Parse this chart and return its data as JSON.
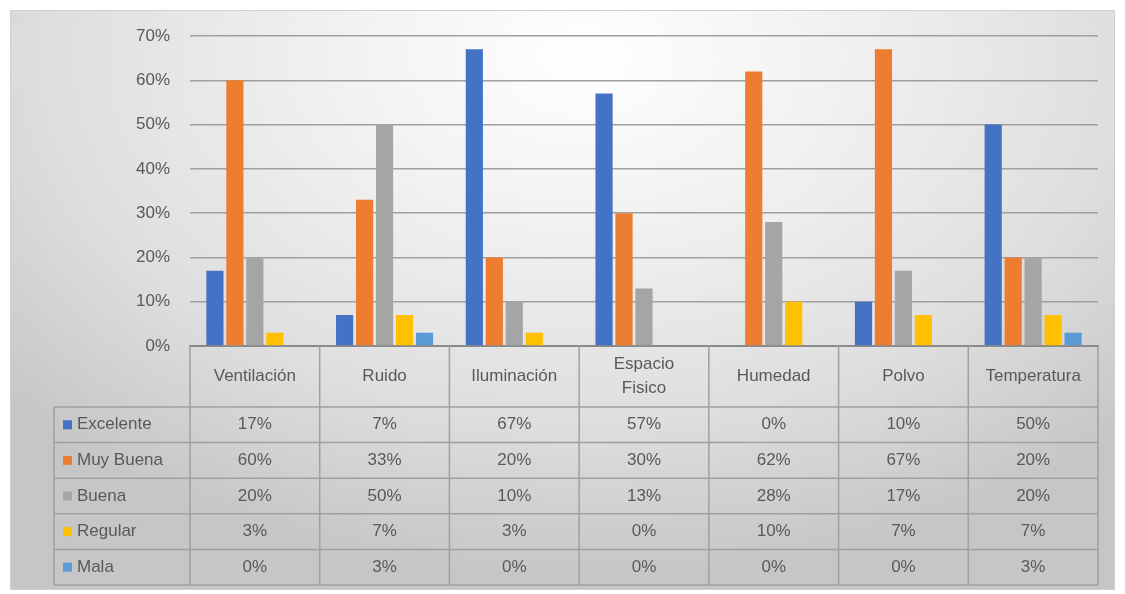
{
  "chart_data": {
    "type": "bar",
    "categories": [
      "Ventilación",
      "Ruido",
      "Iluminación",
      "Espacio\nFisico",
      "Humedad",
      "Polvo",
      "Temperatura"
    ],
    "series": [
      {
        "name": "Excelente",
        "color": "#4472c4",
        "values": [
          17,
          7,
          67,
          57,
          0,
          10,
          50
        ],
        "value_labels": [
          "17%",
          "7%",
          "67%",
          "57%",
          "0%",
          "10%",
          "50%"
        ]
      },
      {
        "name": "Muy Buena",
        "color": "#ed7d31",
        "values": [
          60,
          33,
          20,
          30,
          62,
          67,
          20
        ],
        "value_labels": [
          "60%",
          "33%",
          "20%",
          "30%",
          "62%",
          "67%",
          "20%"
        ]
      },
      {
        "name": "Buena",
        "color": "#a5a5a5",
        "values": [
          20,
          50,
          10,
          13,
          28,
          17,
          20
        ],
        "value_labels": [
          "20%",
          "50%",
          "10%",
          "13%",
          "28%",
          "17%",
          "20%"
        ]
      },
      {
        "name": "Regular",
        "color": "#ffc000",
        "values": [
          3,
          7,
          3,
          0,
          10,
          7,
          7
        ],
        "value_labels": [
          "3%",
          "7%",
          "3%",
          "0%",
          "10%",
          "7%",
          "7%"
        ]
      },
      {
        "name": "Mala",
        "color": "#5b9bd5",
        "values": [
          0,
          3,
          0,
          0,
          0,
          0,
          3
        ],
        "value_labels": [
          "0%",
          "3%",
          "0%",
          "0%",
          "0%",
          "0%",
          "3%"
        ]
      }
    ],
    "ylim": [
      0,
      70
    ],
    "yticks": [
      {
        "value": 0,
        "label": "0%"
      },
      {
        "value": 10,
        "label": "10%"
      },
      {
        "value": 20,
        "label": "20%"
      },
      {
        "value": 30,
        "label": "30%"
      },
      {
        "value": 40,
        "label": "40%"
      },
      {
        "value": 50,
        "label": "50%"
      },
      {
        "value": 60,
        "label": "60%"
      },
      {
        "value": 70,
        "label": "70%"
      }
    ],
    "grid": "y",
    "legend": "bottom left"
  }
}
